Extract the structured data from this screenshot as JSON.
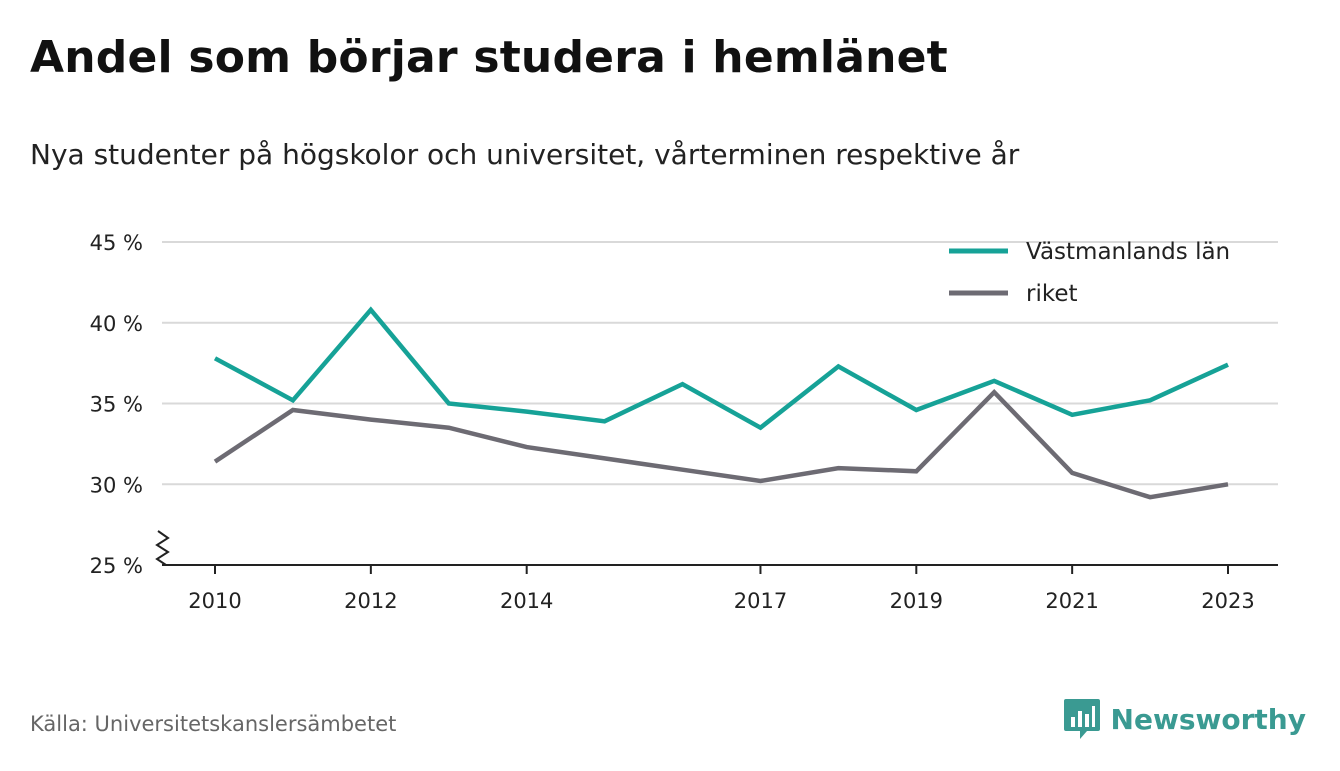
{
  "header": {
    "title": "Andel som börjar studera i hemlänet",
    "subtitle": "Nya studenter på högskolor och universitet, vårterminen respektive år"
  },
  "footer": {
    "source": "Källa: Universitetskanslersämbetet",
    "brand": "Newsworthy",
    "brand_icon": "bar-chart-speech-bubble-icon"
  },
  "colors": {
    "series_1": "#16a297",
    "series_2": "#6d6b73",
    "grid": "#d9d9d9",
    "axis": "#222222",
    "brand": "#3a9a92"
  },
  "chart_data": {
    "type": "line",
    "x": [
      2010,
      2011,
      2012,
      2013,
      2014,
      2015,
      2016,
      2017,
      2018,
      2019,
      2020,
      2021,
      2022,
      2023
    ],
    "x_tick_values": [
      2010,
      2012,
      2014,
      2017,
      2019,
      2021,
      2023
    ],
    "x_tick_labels": [
      "2010",
      "2012",
      "2014",
      "2017",
      "2019",
      "2021",
      "2023"
    ],
    "y_tick_values": [
      25,
      30,
      35,
      40,
      45
    ],
    "y_tick_labels": [
      "25 %",
      "30 %",
      "35 %",
      "40 %",
      "45 %"
    ],
    "ylim": [
      25,
      45
    ],
    "y_axis_break": true,
    "grid": true,
    "legend_position": "top-right",
    "series": [
      {
        "name": "Västmanlands län",
        "color": "#16a297",
        "values": [
          37.8,
          35.2,
          40.8,
          35.0,
          34.5,
          33.9,
          36.2,
          33.5,
          37.3,
          34.6,
          36.4,
          34.3,
          35.2,
          37.4
        ]
      },
      {
        "name": "riket",
        "color": "#6d6b73",
        "values": [
          31.4,
          34.6,
          34.0,
          33.5,
          32.3,
          31.6,
          30.9,
          30.2,
          31.0,
          30.8,
          35.7,
          30.7,
          29.2,
          30.0
        ]
      }
    ]
  }
}
